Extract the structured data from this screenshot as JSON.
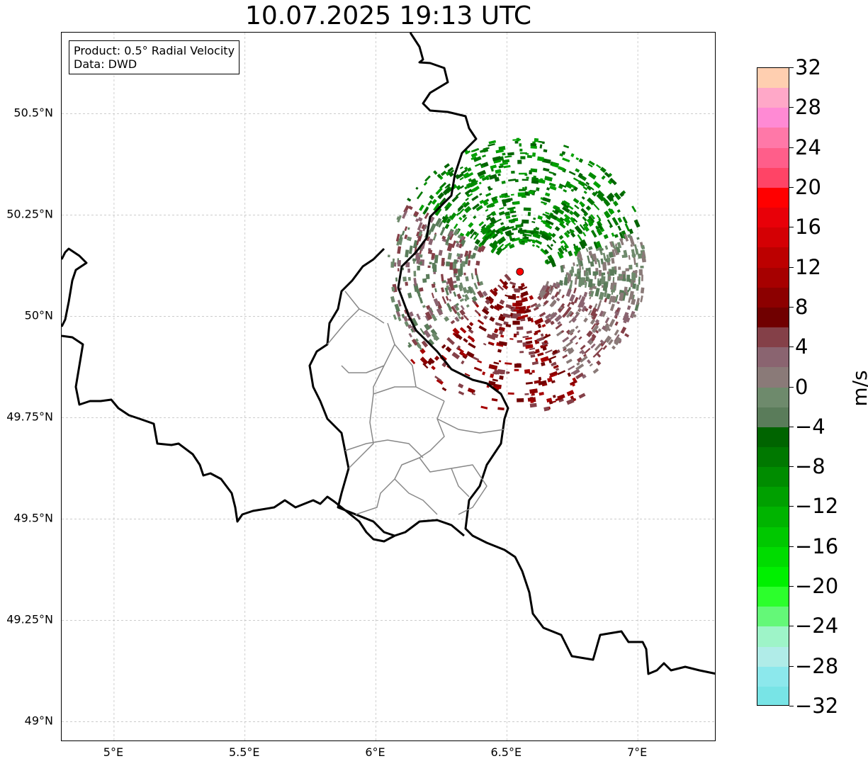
{
  "title": "10.07.2025 19:13 UTC",
  "info_box": {
    "line1": "Product: 0.5° Radial Velocity",
    "line2": "Data: DWD"
  },
  "map": {
    "lon_range": [
      4.8,
      7.3
    ],
    "lat_range": [
      48.95,
      50.7
    ],
    "lat_ticks": [
      {
        "value": 50.5,
        "label": "50.5°N"
      },
      {
        "value": 50.25,
        "label": "50.25°N"
      },
      {
        "value": 50.0,
        "label": "50°N"
      },
      {
        "value": 49.75,
        "label": "49.75°N"
      },
      {
        "value": 49.5,
        "label": "49.5°N"
      },
      {
        "value": 49.25,
        "label": "49.25°N"
      },
      {
        "value": 49.0,
        "label": "49°N"
      }
    ],
    "lon_ticks": [
      {
        "value": 5.0,
        "label": "5°E"
      },
      {
        "value": 5.5,
        "label": "5.5°E"
      },
      {
        "value": 6.0,
        "label": "6°E"
      },
      {
        "value": 6.5,
        "label": "6.5°E"
      },
      {
        "value": 7.0,
        "label": "7°E"
      }
    ],
    "radar_site": {
      "lon": 6.55,
      "lat": 50.11,
      "color": "#ff0000"
    },
    "gridlines": true
  },
  "colorbar": {
    "unit": "m/s",
    "min": -32,
    "max": 32,
    "tick_values": [
      32,
      28,
      24,
      20,
      16,
      12,
      8,
      4,
      0,
      -4,
      -8,
      -12,
      -16,
      -20,
      -24,
      -28,
      -32
    ],
    "tick_labels": [
      "32",
      "28",
      "24",
      "20",
      "16",
      "12",
      "8",
      "4",
      "0",
      "−4",
      "−8",
      "−12",
      "−16",
      "−20",
      "−24",
      "−28",
      "−32"
    ],
    "colors_top_to_bottom": [
      "#ffcfb0",
      "#ffa8c8",
      "#ff8ad4",
      "#ff78a8",
      "#ff5e8a",
      "#ff4466",
      "#ff0000",
      "#e80008",
      "#d40004",
      "#bc0000",
      "#a60000",
      "#8c0000",
      "#700000",
      "#844048",
      "#8a6470",
      "#8a7a78",
      "#6e8a6c",
      "#5a7c5a",
      "#006400",
      "#007800",
      "#008c00",
      "#00a000",
      "#00b400",
      "#00c800",
      "#00dc00",
      "#00f000",
      "#2cff2c",
      "#64f878",
      "#9ef4c8",
      "#b0ece8",
      "#8ce8ec",
      "#78e4e6"
    ]
  }
}
